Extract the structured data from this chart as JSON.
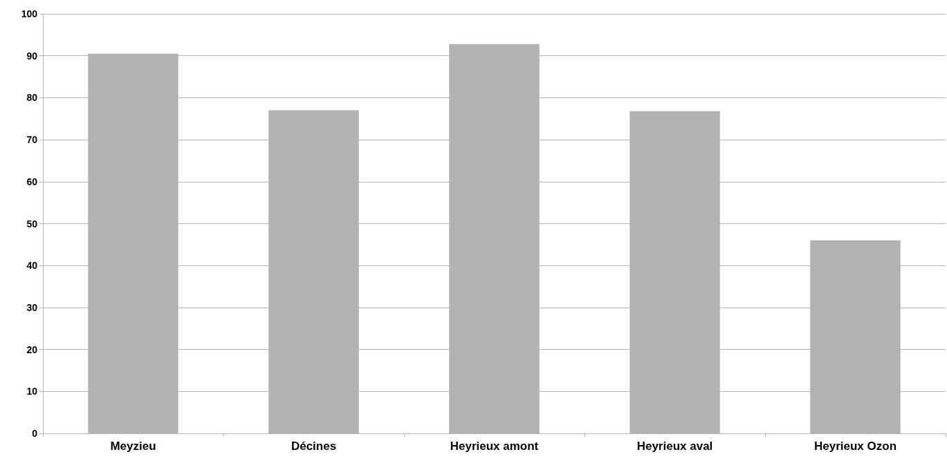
{
  "chart_data": {
    "type": "bar",
    "categories": [
      "Meyzieu",
      "Décines",
      "Heyrieux amont",
      "Heyrieux aval",
      "Heyrieux Ozon"
    ],
    "values": [
      90.5,
      77,
      92.8,
      76.8,
      46
    ],
    "color": "#b2b2b2",
    "ylim": [
      0,
      100
    ],
    "yticks": [
      0,
      10,
      20,
      30,
      40,
      50,
      60,
      70,
      80,
      90,
      100
    ],
    "grid": "y"
  }
}
